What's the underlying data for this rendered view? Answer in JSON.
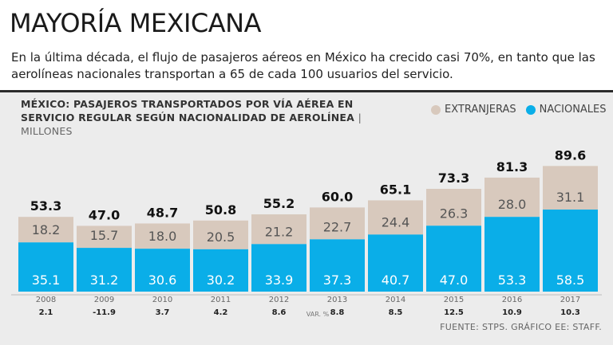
{
  "title": "MAYORÍA MEXICANA",
  "subtitle": "En la última década, el flujo de pasajeros aéreos en México ha crecido casi 70%, en tanto que las aerolíneas nacionales transportan a 65 de cada 100 usuarios del servicio.",
  "chart_title": "MÉXICO: PASAJEROS TRANSPORTADOS POR VÍA AÉREA EN SERVICIO REGULAR SEGÚN NACIONALIDAD DE AEROLÍNEA",
  "units": "MILLONES",
  "legend": {
    "foreign": "EXTRANJERAS",
    "national": "NACIONALES"
  },
  "colors": {
    "foreign": "#d8c9bd",
    "national": "#0aaee8",
    "background": "#ececec"
  },
  "var_label": "VAR. %",
  "source": "FUENTE: STPS. GRÁFICO EE: STAFF.",
  "chart_data": {
    "type": "bar",
    "stacked": true,
    "title": "MÉXICO: PASAJEROS TRANSPORTADOS POR VÍA AÉREA EN SERVICIO REGULAR SEGÚN NACIONALIDAD DE AEROLÍNEA",
    "ylabel": "MILLONES",
    "ylim": [
      0,
      95
    ],
    "categories": [
      "2008",
      "2009",
      "2010",
      "2011",
      "2012",
      "2013",
      "2014",
      "2015",
      "2016",
      "2017"
    ],
    "series": [
      {
        "name": "NACIONALES",
        "values": [
          35.1,
          31.2,
          30.6,
          30.2,
          33.9,
          37.3,
          40.7,
          47.0,
          53.3,
          58.5
        ]
      },
      {
        "name": "EXTRANJERAS",
        "values": [
          18.2,
          15.7,
          18.0,
          20.5,
          21.2,
          22.7,
          24.4,
          26.3,
          28.0,
          31.1
        ]
      }
    ],
    "totals": [
      "53.3",
      "47.0",
      "48.7",
      "50.8",
      "55.2",
      "60.0",
      "65.1",
      "73.3",
      "81.3",
      "89.6"
    ],
    "national_labels": [
      "35.1",
      "31.2",
      "30.6",
      "30.2",
      "33.9",
      "37.3",
      "40.7",
      "47.0",
      "53.3",
      "58.5"
    ],
    "foreign_labels": [
      "18.2",
      "15.7",
      "18.0",
      "20.5",
      "21.2",
      "22.7",
      "24.4",
      "26.3",
      "28.0",
      "31.1"
    ],
    "var_pct": [
      "2.1",
      "-11.9",
      "3.7",
      "4.2",
      "8.6",
      "8.8",
      "8.5",
      "12.5",
      "10.9",
      "10.3"
    ]
  }
}
